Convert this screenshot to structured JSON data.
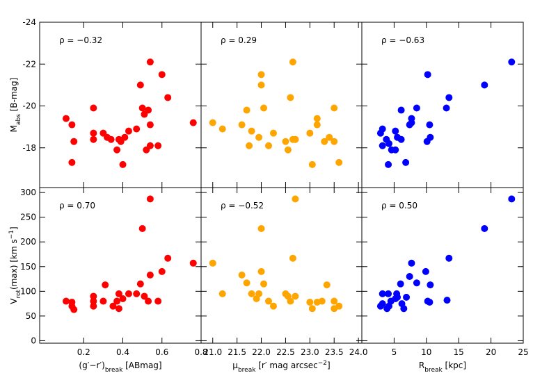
{
  "chart_data": [
    {
      "type": "scatter",
      "annotation": "ρ = −0.32",
      "color": "#ff0000",
      "ylabel": [
        {
          "text": "M"
        },
        {
          "text": "abs",
          "sub": true
        },
        {
          "text": " [B-mag]"
        }
      ],
      "x": [
        0.11,
        0.14,
        0.15,
        0.14,
        0.25,
        0.25,
        0.25,
        0.3,
        0.32,
        0.34,
        0.37,
        0.38,
        0.39,
        0.4,
        0.41,
        0.43,
        0.47,
        0.5,
        0.49,
        0.51,
        0.52,
        0.53,
        0.54,
        0.54,
        0.54,
        0.58,
        0.6,
        0.63,
        0.76
      ],
      "values": [
        -19.4,
        -19.1,
        -18.3,
        -17.3,
        -19.9,
        -18.7,
        -18.4,
        -18.7,
        -18.5,
        -18.4,
        -17.9,
        -18.4,
        -18.3,
        -17.2,
        -18.5,
        -18.8,
        -18.9,
        -19.9,
        -21.0,
        -19.6,
        -17.9,
        -19.8,
        -22.1,
        -19.1,
        -18.1,
        -18.1,
        -21.5,
        -20.4,
        -19.2
      ],
      "xlim": [
        -0.025,
        0.8
      ],
      "xticks": [
        0.2,
        0.4,
        0.6,
        0.8
      ],
      "ylim": [
        -16.1,
        -24
      ],
      "yticks": [
        -24,
        -22,
        -20,
        -18
      ]
    },
    {
      "type": "scatter",
      "annotation": "ρ = 0.29",
      "color": "#ffa500",
      "x": [
        21.0,
        21.2,
        21.6,
        21.7,
        21.75,
        21.8,
        21.95,
        22.0,
        22.0,
        22.05,
        22.15,
        22.25,
        22.5,
        22.55,
        22.6,
        22.65,
        22.7,
        22.65,
        22.7,
        23.0,
        23.05,
        23.15,
        23.15,
        23.3,
        23.4,
        23.5,
        23.5,
        23.6
      ],
      "values": [
        -19.2,
        -18.9,
        -19.1,
        -19.8,
        -18.1,
        -18.8,
        -18.5,
        -21.0,
        -21.5,
        -19.9,
        -18.1,
        -18.7,
        -18.3,
        -17.9,
        -20.4,
        -22.1,
        -18.4,
        -18.4,
        -18.4,
        -18.7,
        -17.2,
        -19.1,
        -19.4,
        -18.3,
        -18.5,
        -19.9,
        -18.3,
        -17.3
      ],
      "xlim": [
        20.76,
        24.07
      ],
      "xticks": [
        21,
        21.5,
        22,
        22.5,
        23,
        23.5,
        24
      ],
      "ylim": [
        -16.1,
        -24
      ],
      "yticks": [
        -24,
        -22,
        -20,
        -18
      ]
    },
    {
      "type": "scatter",
      "annotation": "ρ = −0.63",
      "color": "#0000ff",
      "x": [
        2.9,
        3.2,
        3.2,
        3.8,
        4.1,
        4.2,
        4.6,
        5.2,
        5.2,
        5.5,
        6.1,
        6.1,
        6.8,
        7.4,
        7.7,
        7.7,
        8.5,
        10.2,
        10.1,
        10.5,
        10.6,
        13.1,
        13.5,
        19,
        23.2
      ],
      "values": [
        -18.7,
        -18.9,
        -18.1,
        -18.4,
        -17.2,
        -18.2,
        -17.9,
        -18.8,
        -17.9,
        -18.5,
        -19.8,
        -18.4,
        -17.3,
        -19.1,
        -19.4,
        -19.2,
        -19.9,
        -21.5,
        -18.3,
        -19.1,
        -18.5,
        -19.9,
        -20.4,
        -21.0,
        -22.1
      ],
      "xlim": [
        0,
        25
      ],
      "xticks": [
        5,
        10,
        15,
        20,
        25
      ],
      "ylim": [
        -16.1,
        -24
      ],
      "yticks": [
        -24,
        -22,
        -20,
        -18
      ]
    },
    {
      "type": "scatter",
      "annotation": "ρ = 0.70",
      "color": "#ff0000",
      "ylabel": [
        {
          "text": "V"
        },
        {
          "text": "rot",
          "sub": true
        },
        {
          "text": "(max) [km s"
        },
        {
          "text": "−1",
          "sup": true
        },
        {
          "text": "]"
        }
      ],
      "xlabel": [
        {
          "text": "(g′−r′)"
        },
        {
          "text": "break",
          "sub": true
        },
        {
          "text": " [ABmag]"
        }
      ],
      "x": [
        0.11,
        0.14,
        0.14,
        0.15,
        0.25,
        0.25,
        0.25,
        0.3,
        0.31,
        0.35,
        0.37,
        0.38,
        0.38,
        0.4,
        0.43,
        0.47,
        0.49,
        0.5,
        0.51,
        0.53,
        0.54,
        0.54,
        0.58,
        0.6,
        0.63,
        0.76
      ],
      "values": [
        80,
        78,
        70,
        63,
        90,
        80,
        70,
        80,
        113,
        70,
        80,
        95,
        65,
        85,
        95,
        95,
        115,
        227,
        90,
        80,
        133,
        287,
        80,
        140,
        167,
        157
      ],
      "xlim": [
        -0.025,
        0.8
      ],
      "xticks": [
        0.2,
        0.4,
        0.6,
        0.8
      ],
      "ylim": [
        -5,
        310
      ],
      "yticks": [
        0,
        50,
        100,
        150,
        200,
        250,
        300
      ]
    },
    {
      "type": "scatter",
      "annotation": "ρ = −0.52",
      "color": "#ffa500",
      "xlabel": [
        {
          "text": "μ"
        },
        {
          "text": "break",
          "sub": true
        },
        {
          "text": " [r′ mag arcsec"
        },
        {
          "text": "−2",
          "sup": true
        },
        {
          "text": "]"
        }
      ],
      "x": [
        21.0,
        21.2,
        21.6,
        21.7,
        21.8,
        21.9,
        21.95,
        22.0,
        22.0,
        22.05,
        22.15,
        22.25,
        22.5,
        22.55,
        22.6,
        22.65,
        22.7,
        22.7,
        23.0,
        23.05,
        23.15,
        23.25,
        23.35,
        23.5,
        23.5,
        23.6
      ],
      "values": [
        157,
        95,
        133,
        117,
        95,
        85,
        95,
        227,
        140,
        115,
        80,
        70,
        95,
        90,
        80,
        167,
        287,
        90,
        78,
        65,
        78,
        80,
        113,
        80,
        65,
        70
      ],
      "xlim": [
        20.76,
        24.07
      ],
      "xticks": [
        {
          "value": 21,
          "label": "21.0"
        },
        21.5,
        {
          "value": 22,
          "label": "22.0"
        },
        22.5,
        {
          "value": 23,
          "label": "23.0"
        },
        23.5,
        {
          "value": 24,
          "label": "24.0"
        }
      ],
      "ylim": [
        -5,
        310
      ],
      "yticks": [
        0,
        50,
        100,
        150,
        200,
        250,
        300
      ]
    },
    {
      "type": "scatter",
      "annotation": "ρ = 0.50",
      "color": "#0000ff",
      "xlabel": [
        {
          "text": "R"
        },
        {
          "text": "break",
          "sub": true
        },
        {
          "text": " [kpc]"
        }
      ],
      "x": [
        2.9,
        3.2,
        3.2,
        3.9,
        4.1,
        4.2,
        4.5,
        5.2,
        5.4,
        5.5,
        6.0,
        6.2,
        6.5,
        6.9,
        7.4,
        7.7,
        8.5,
        9.9,
        10.2,
        10.5,
        10.6,
        13.2,
        13.5,
        19,
        23.2
      ],
      "values": [
        70,
        95,
        75,
        65,
        95,
        70,
        80,
        85,
        95,
        88,
        115,
        75,
        65,
        88,
        130,
        157,
        117,
        140,
        80,
        78,
        113,
        82,
        167,
        227,
        287
      ],
      "xlim": [
        0,
        25
      ],
      "xticks": [
        5,
        10,
        15,
        20,
        25
      ],
      "ylim": [
        -5,
        310
      ],
      "yticks": [
        0,
        50,
        100,
        150,
        200,
        250,
        300
      ]
    }
  ]
}
